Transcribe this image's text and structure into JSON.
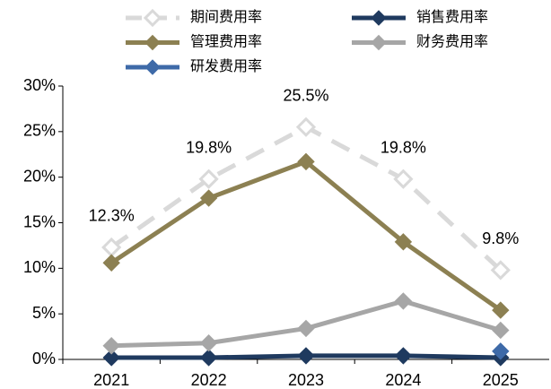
{
  "chart_data": {
    "type": "line",
    "categories": [
      "2021",
      "2022",
      "2023",
      "2024",
      "2025"
    ],
    "series": [
      {
        "name": "期间费用率",
        "color": "#d9d9d9",
        "dashed": true,
        "values": [
          12.3,
          19.8,
          25.5,
          19.8,
          9.8
        ],
        "value_labels": [
          "12.3%",
          "19.8%",
          "25.5%",
          "19.8%",
          "9.8%"
        ]
      },
      {
        "name": "销售费用率",
        "color": "#1f3a5f",
        "values": [
          0.2,
          0.2,
          0.4,
          0.4,
          0.2
        ]
      },
      {
        "name": "管理费用率",
        "color": "#8c8052",
        "values": [
          10.6,
          17.7,
          21.7,
          12.9,
          5.4
        ]
      },
      {
        "name": "财务费用率",
        "color": "#a6a6a6",
        "values": [
          1.5,
          1.8,
          3.4,
          6.4,
          3.2
        ]
      },
      {
        "name": "研发费用率",
        "color": "#3e6aa8",
        "values": [
          null,
          null,
          null,
          null,
          0.9
        ]
      }
    ],
    "ylim": [
      0,
      30
    ],
    "yticks": [
      {
        "value": 0,
        "label": "0%"
      },
      {
        "value": 5,
        "label": "5%"
      },
      {
        "value": 10,
        "label": "10%"
      },
      {
        "value": 15,
        "label": "15%"
      },
      {
        "value": 20,
        "label": "20%"
      },
      {
        "value": 25,
        "label": "25%"
      },
      {
        "value": 30,
        "label": "30%"
      }
    ]
  }
}
